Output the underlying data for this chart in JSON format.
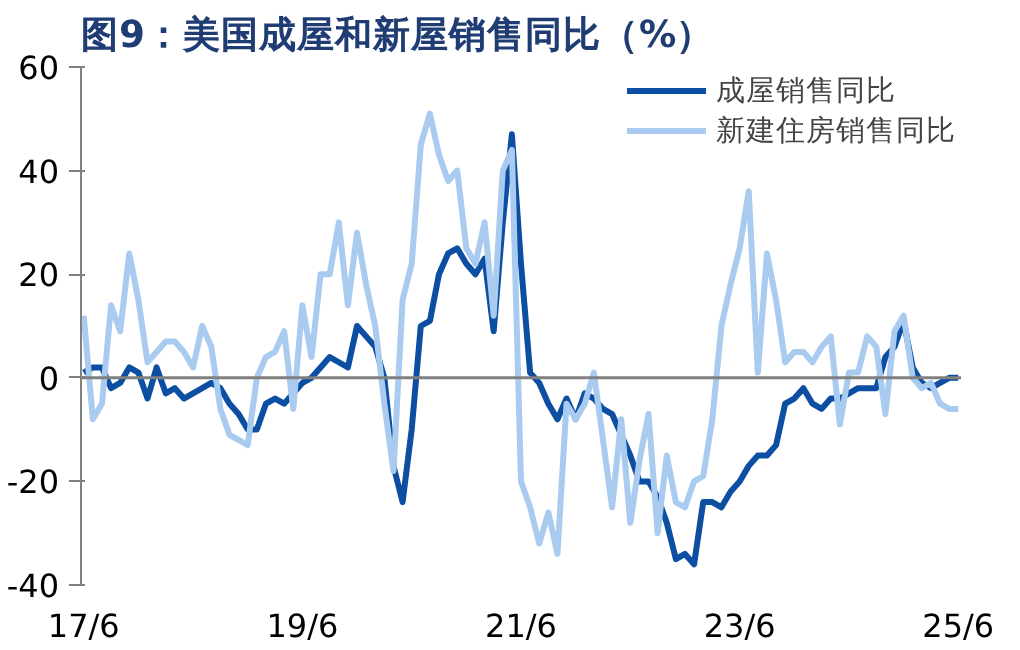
{
  "chart_data": {
    "type": "line",
    "title": "图9：美国成屋和新屋销售同比（%）",
    "categories": [
      "17/6",
      null,
      null,
      null,
      null,
      null,
      null,
      null,
      null,
      null,
      null,
      null,
      null,
      null,
      null,
      null,
      null,
      null,
      null,
      null,
      null,
      null,
      null,
      null,
      "19/6",
      null,
      null,
      null,
      null,
      null,
      null,
      null,
      null,
      null,
      null,
      null,
      null,
      null,
      null,
      null,
      null,
      null,
      null,
      null,
      null,
      null,
      null,
      null,
      "21/6",
      null,
      null,
      null,
      null,
      null,
      null,
      null,
      null,
      null,
      null,
      null,
      null,
      null,
      null,
      null,
      null,
      null,
      null,
      null,
      null,
      null,
      null,
      null,
      "23/6",
      null,
      null,
      null,
      null,
      null,
      null,
      null,
      null,
      null,
      null,
      null,
      null,
      null,
      null,
      null,
      null,
      null,
      null,
      null,
      null,
      null,
      null,
      null,
      "25/6"
    ],
    "series": [
      {
        "name": "成屋销售同比",
        "color": "#0b4ea2",
        "values": [
          1,
          2,
          2,
          -2,
          -1,
          2,
          1,
          -4,
          2,
          -3,
          -2,
          -4,
          -3,
          -2,
          -1,
          -2,
          -5,
          -7,
          -10,
          -10,
          -5,
          -4,
          -5,
          -3,
          -1,
          0,
          2,
          4,
          3,
          2,
          10,
          8,
          6,
          0,
          -17,
          -24,
          -10,
          10,
          11,
          20,
          24,
          25,
          22,
          20,
          23,
          9,
          30,
          47,
          22,
          1,
          -1,
          -5,
          -8,
          -4,
          -8,
          -3,
          -4,
          -6,
          -7,
          -11,
          -15,
          -20,
          -20,
          -23,
          -28,
          -35,
          -34,
          -36,
          -24,
          -24,
          -25,
          -22,
          -20,
          -17,
          -15,
          -15,
          -13,
          -5,
          -4,
          -2,
          -5,
          -6,
          -4,
          -4,
          -3,
          -2,
          -2,
          -2,
          4,
          6,
          11,
          2,
          -1,
          -2,
          -1,
          0,
          0
        ]
      },
      {
        "name": "新建住房销售同比",
        "color": "#a9cbf0",
        "values": [
          12,
          -8,
          -5,
          14,
          9,
          24,
          15,
          3,
          5,
          7,
          7,
          5,
          2,
          10,
          6,
          -6,
          -11,
          -12,
          -13,
          0,
          4,
          5,
          9,
          -6,
          14,
          4,
          20,
          20,
          30,
          14,
          28,
          18,
          10,
          -5,
          -18,
          15,
          22,
          45,
          51,
          43,
          38,
          40,
          25,
          22,
          30,
          12,
          40,
          44,
          -20,
          -25,
          -32,
          -26,
          -34,
          -5,
          -8,
          -5,
          1,
          -12,
          -25,
          -8,
          -28,
          -16,
          -7,
          -30,
          -15,
          -24,
          -25,
          -20,
          -19,
          -8,
          10,
          18,
          25,
          36,
          1,
          24,
          15,
          3,
          5,
          5,
          3,
          6,
          8,
          -9,
          1,
          1,
          8,
          6,
          -7,
          9,
          12,
          0,
          -2,
          -1,
          -5,
          -6,
          -6
        ]
      }
    ],
    "ylim": [
      -40,
      60
    ],
    "yticks": [
      -40,
      -20,
      0,
      20,
      40,
      60
    ],
    "ref_lines": [
      {
        "axis": "y",
        "value": 0,
        "color": "#808080"
      }
    ],
    "legend": "top right",
    "grid": false,
    "line_style": "solid",
    "marker": "none"
  }
}
